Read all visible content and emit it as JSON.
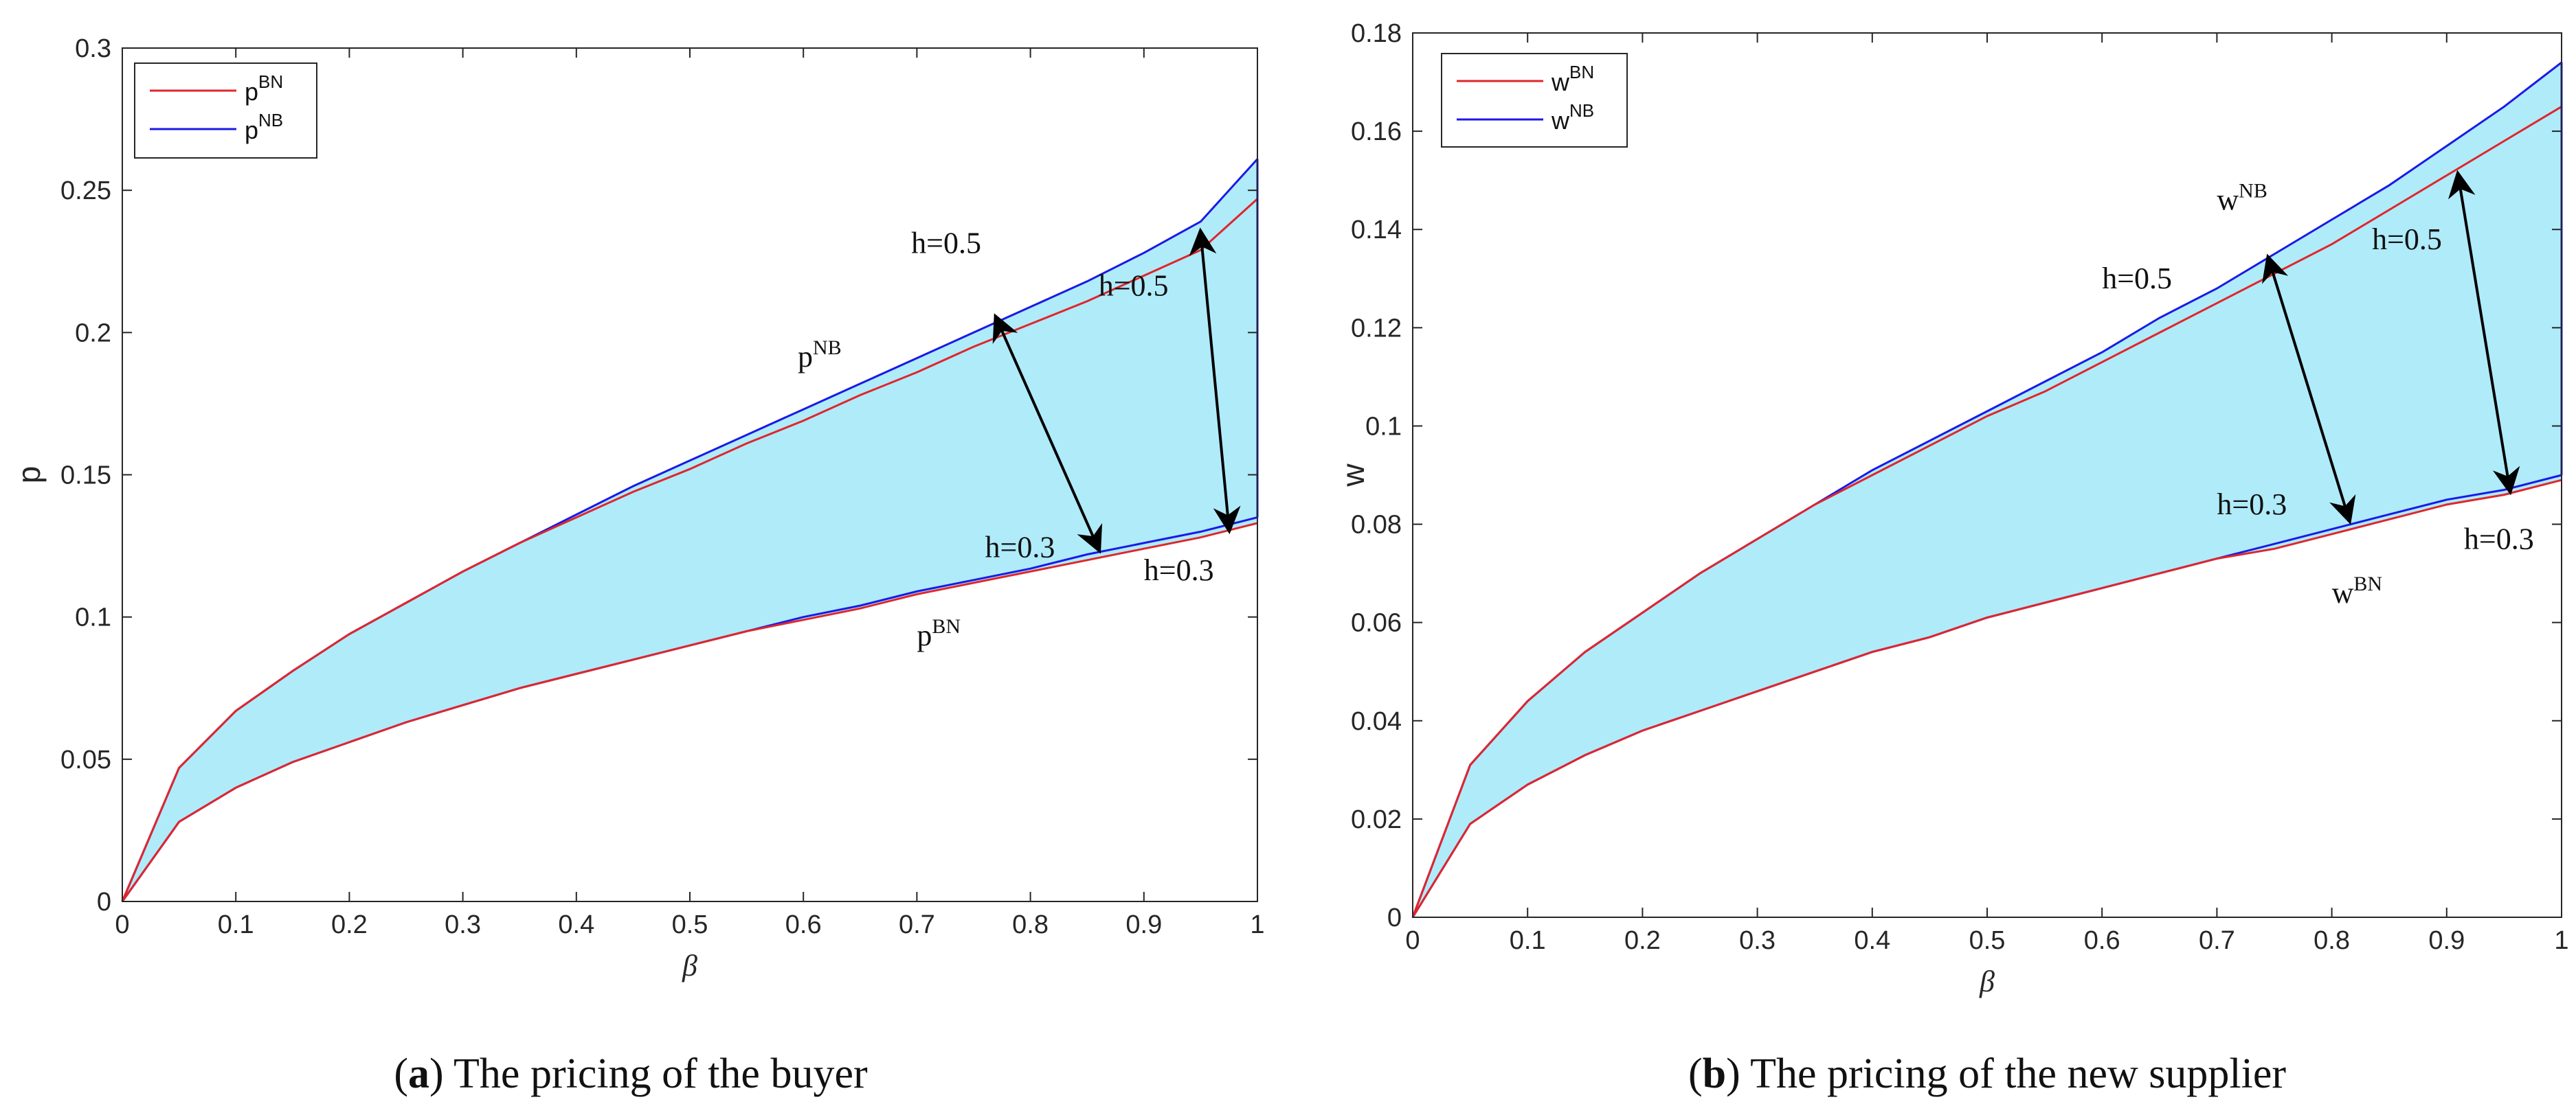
{
  "colors": {
    "red": "#e0262b",
    "blue": "#1a1ae6",
    "fill": "#b0ebfa",
    "arrow": "#000000"
  },
  "chart_data": [
    {
      "type": "area",
      "xlabel": "β",
      "ylabel": "p",
      "xlim": [
        0,
        1
      ],
      "ylim": [
        0,
        0.3
      ],
      "grid": false,
      "legend_placement": "top-left",
      "xticks": [
        "0",
        "0.1",
        "0.2",
        "0.3",
        "0.4",
        "0.5",
        "0.6",
        "0.7",
        "0.8",
        "0.9",
        "1"
      ],
      "yticks": [
        "0",
        "0.05",
        "0.1",
        "0.15",
        "0.2",
        "0.25",
        "0.3"
      ],
      "legend": [
        {
          "base": "p",
          "sup": "BN",
          "color": "red"
        },
        {
          "base": "p",
          "sup": "NB",
          "color": "blue"
        }
      ],
      "x": [
        0,
        0.05,
        0.1,
        0.15,
        0.2,
        0.25,
        0.3,
        0.35,
        0.4,
        0.45,
        0.5,
        0.55,
        0.6,
        0.65,
        0.7,
        0.75,
        0.8,
        0.85,
        0.9,
        0.95,
        1
      ],
      "series": [
        {
          "name": "p^NB h=0.5",
          "color": "blue",
          "values": [
            0,
            0.047,
            0.067,
            0.081,
            0.094,
            0.105,
            0.116,
            0.126,
            0.136,
            0.146,
            0.155,
            0.164,
            0.173,
            0.182,
            0.191,
            0.2,
            0.209,
            0.218,
            0.228,
            0.239,
            0.261
          ]
        },
        {
          "name": "p^BN h=0.5",
          "color": "red",
          "values": [
            0,
            0.047,
            0.067,
            0.081,
            0.094,
            0.105,
            0.116,
            0.126,
            0.135,
            0.144,
            0.152,
            0.161,
            0.169,
            0.178,
            0.186,
            0.195,
            0.203,
            0.211,
            0.22,
            0.229,
            0.247
          ]
        },
        {
          "name": "p^NB h=0.3",
          "color": "blue",
          "values": [
            0,
            0.028,
            0.04,
            0.049,
            0.056,
            0.063,
            0.069,
            0.075,
            0.08,
            0.085,
            0.09,
            0.095,
            0.1,
            0.104,
            0.109,
            0.113,
            0.117,
            0.122,
            0.126,
            0.13,
            0.135
          ]
        },
        {
          "name": "p^BN h=0.3",
          "color": "red",
          "values": [
            0,
            0.028,
            0.04,
            0.049,
            0.056,
            0.063,
            0.069,
            0.075,
            0.08,
            0.085,
            0.09,
            0.095,
            0.099,
            0.103,
            0.108,
            0.112,
            0.116,
            0.12,
            0.124,
            0.128,
            0.133
          ]
        }
      ],
      "edge": {
        "x": 1,
        "from": 0.135,
        "to": 0.261
      },
      "arrows": [
        {
          "from": [
            0.86,
            0.124
          ],
          "to": [
            0.77,
            0.205
          ]
        },
        {
          "from": [
            0.975,
            0.131
          ],
          "to": [
            0.95,
            0.235
          ]
        }
      ],
      "annotations": [
        {
          "text": "h=0.5",
          "sup": "",
          "x": 0.695,
          "y": 0.228
        },
        {
          "text": "h=0.5",
          "sup": "",
          "x": 0.86,
          "y": 0.213
        },
        {
          "text": "p",
          "sup": "NB",
          "x": 0.595,
          "y": 0.188
        },
        {
          "text": "h=0.3",
          "sup": "",
          "x": 0.76,
          "y": 0.121
        },
        {
          "text": "h=0.3",
          "sup": "",
          "x": 0.9,
          "y": 0.113
        },
        {
          "text": "p",
          "sup": "BN",
          "x": 0.7,
          "y": 0.09
        }
      ],
      "caption_letter": "a",
      "caption_text": "The pricing of the buyer"
    },
    {
      "type": "area",
      "xlabel": "β",
      "ylabel": "w",
      "xlim": [
        0,
        1
      ],
      "ylim": [
        0,
        0.18
      ],
      "grid": false,
      "legend_placement": "top-left",
      "xticks": [
        "0",
        "0.1",
        "0.2",
        "0.3",
        "0.4",
        "0.5",
        "0.6",
        "0.7",
        "0.8",
        "0.9",
        "1"
      ],
      "yticks": [
        "0",
        "0.02",
        "0.04",
        "0.06",
        "0.08",
        "0.1",
        "0.12",
        "0.14",
        "0.16",
        "0.18"
      ],
      "legend": [
        {
          "base": "w",
          "sup": "BN",
          "color": "red"
        },
        {
          "base": "w",
          "sup": "NB",
          "color": "blue"
        }
      ],
      "x": [
        0,
        0.05,
        0.1,
        0.15,
        0.2,
        0.25,
        0.3,
        0.35,
        0.4,
        0.45,
        0.5,
        0.55,
        0.6,
        0.65,
        0.7,
        0.75,
        0.8,
        0.85,
        0.9,
        0.95,
        1
      ],
      "series": [
        {
          "name": "w^NB h=0.5",
          "color": "blue",
          "values": [
            0,
            0.031,
            0.044,
            0.054,
            0.062,
            0.07,
            0.077,
            0.084,
            0.091,
            0.097,
            0.103,
            0.109,
            0.115,
            0.122,
            0.128,
            0.135,
            0.142,
            0.149,
            0.157,
            0.165,
            0.174
          ]
        },
        {
          "name": "w^BN h=0.5",
          "color": "red",
          "values": [
            0,
            0.031,
            0.044,
            0.054,
            0.062,
            0.07,
            0.077,
            0.084,
            0.09,
            0.096,
            0.102,
            0.107,
            0.113,
            0.119,
            0.125,
            0.131,
            0.137,
            0.144,
            0.151,
            0.158,
            0.165
          ]
        },
        {
          "name": "w^NB h=0.3",
          "color": "blue",
          "values": [
            0,
            0.019,
            0.027,
            0.033,
            0.038,
            0.042,
            0.046,
            0.05,
            0.054,
            0.057,
            0.061,
            0.064,
            0.067,
            0.07,
            0.073,
            0.076,
            0.079,
            0.082,
            0.085,
            0.087,
            0.09
          ]
        },
        {
          "name": "w^BN h=0.3",
          "color": "red",
          "values": [
            0,
            0.019,
            0.027,
            0.033,
            0.038,
            0.042,
            0.046,
            0.05,
            0.054,
            0.057,
            0.061,
            0.064,
            0.067,
            0.07,
            0.073,
            0.075,
            0.078,
            0.081,
            0.084,
            0.086,
            0.089
          ]
        }
      ],
      "edge": {
        "x": 1,
        "from": 0.09,
        "to": 0.174
      },
      "arrows": [
        {
          "from": [
            0.815,
            0.081
          ],
          "to": [
            0.745,
            0.134
          ]
        },
        {
          "from": [
            0.955,
            0.087
          ],
          "to": [
            0.91,
            0.151
          ]
        }
      ],
      "annotations": [
        {
          "text": "w",
          "sup": "NB",
          "x": 0.7,
          "y": 0.144
        },
        {
          "text": "h=0.5",
          "sup": "",
          "x": 0.6,
          "y": 0.128
        },
        {
          "text": "h=0.5",
          "sup": "",
          "x": 0.835,
          "y": 0.136
        },
        {
          "text": "h=0.3",
          "sup": "",
          "x": 0.7,
          "y": 0.082
        },
        {
          "text": "h=0.3",
          "sup": "",
          "x": 0.915,
          "y": 0.075
        },
        {
          "text": "w",
          "sup": "BN",
          "x": 0.8,
          "y": 0.064
        }
      ],
      "caption_letter": "b",
      "caption_text": "The pricing of the new supplier"
    }
  ]
}
